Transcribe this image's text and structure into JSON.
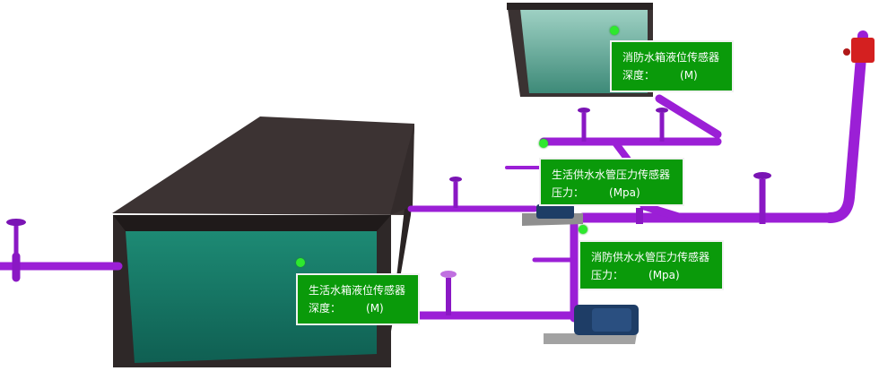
{
  "colors": {
    "pipe": "#9b1fd6",
    "pipe_dark": "#6a0fa0",
    "tank_shell": "#3a3232",
    "water": "#1f8c78",
    "label_bg": "#0a9a0a",
    "indicator": "#2ee82e",
    "pump": "#1e3d66",
    "alarm": "#d42020"
  },
  "sensors": [
    {
      "id": "fire_tank_level",
      "title": "消防水箱液位传感器",
      "field_label": "深度：",
      "value": "",
      "unit": "(M)"
    },
    {
      "id": "domestic_pipe_pressure",
      "title": "生活供水水管压力传感器",
      "field_label": "压力：",
      "value": "",
      "unit": "(Mpa)"
    },
    {
      "id": "fire_pipe_pressure",
      "title": "消防供水水管压力传感器",
      "field_label": "压力：",
      "value": "",
      "unit": "(Mpa)"
    },
    {
      "id": "domestic_tank_level",
      "title": "生活水箱液位传感器",
      "field_label": "深度：",
      "value": "",
      "unit": "(M)"
    }
  ],
  "icons": {
    "valve": "gate-valve-icon",
    "pump": "pump-icon",
    "alarm": "alarm-valve-icon",
    "indicator": "status-dot-icon"
  }
}
